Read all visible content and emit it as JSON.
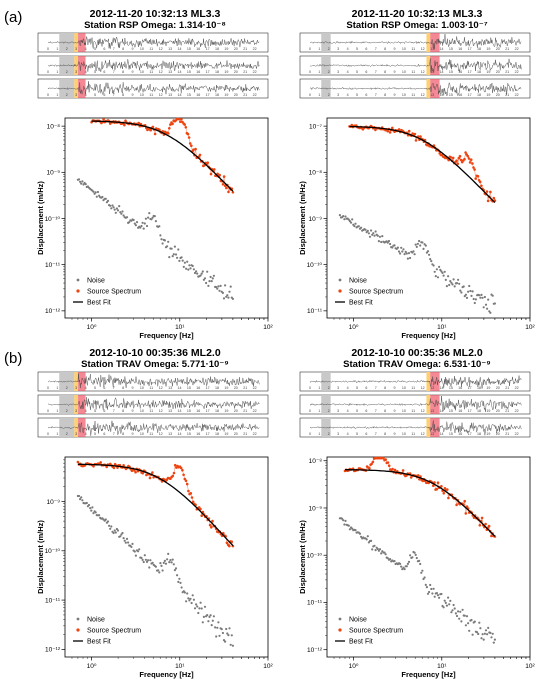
{
  "figure": {
    "panel_labels": [
      "(a)",
      "(b)"
    ]
  },
  "colors": {
    "noise": "#7a7a7a",
    "source": "#ee4411",
    "fit": "#000000",
    "noise_window": "#c8c8c8",
    "window_yellow": "#ffd070",
    "window_red": "#f06070",
    "trace": "#444444"
  },
  "legend_labels": {
    "noise": "Noise",
    "source": "Source Spectrum",
    "fit": "Best Fit"
  },
  "chart_data": [
    {
      "type": "scatter",
      "panel": "(a)",
      "title": "2012-11-20   10:32:13   ML3.3",
      "subtitle": "Station RSP     Omega: 1.314·10⁻⁸",
      "xlabel": "Frequency [Hz]",
      "ylabel": "Displacement (m/Hz)",
      "xscale": "log",
      "yscale": "log",
      "xlim": [
        0.5,
        100
      ],
      "ylim": [
        7e-13,
        1.5e-08
      ],
      "x_ticks": [
        1,
        10,
        100
      ],
      "x_tick_labels": [
        "10⁰",
        "10¹",
        "10²"
      ],
      "y_ticks": [
        1e-12,
        1e-11,
        1e-10,
        1e-09,
        1e-08
      ],
      "y_tick_labels": [
        "10⁻¹²",
        "10⁻¹¹",
        "10⁻¹⁰",
        "10⁻⁹",
        "10⁻⁸"
      ],
      "legend_position": "lower-left",
      "omega": 1.314e-08,
      "fc": 7,
      "f_max": 40,
      "noise": {
        "f_start": 0.7,
        "f_end": 40,
        "level_start": 7e-10,
        "level_end": 1.8e-12,
        "bump_f": 5,
        "bump_amp": 1.8
      },
      "source": {
        "f_start": 1.0,
        "f_end": 40,
        "bump_f": 10,
        "bump_amp": 2.5
      },
      "seismogram": {
        "tick_labels": [
          "0",
          "1",
          "2",
          "3",
          "4",
          "5",
          "6",
          "7",
          "8",
          "9",
          "10",
          "11",
          "12",
          "13",
          "14",
          "15",
          "16",
          "17",
          "18",
          "19",
          "20",
          "21",
          "22"
        ],
        "noise_window": [
          1.2,
          2.8
        ],
        "yellow_window": [
          2.8,
          3.2
        ],
        "red_window": [
          3.2,
          4.0
        ]
      }
    },
    {
      "type": "scatter",
      "panel": "(a)",
      "title": "2012-11-20   10:32:13   ML3.3",
      "subtitle": "Station RSP     Omega: 1.003·10⁻⁷",
      "xlabel": "Frequency [Hz]",
      "ylabel": "Displacement (m/Hz)",
      "xscale": "log",
      "yscale": "log",
      "xlim": [
        0.5,
        100
      ],
      "ylim": [
        7e-12,
        1.5e-07
      ],
      "x_ticks": [
        1,
        10,
        100
      ],
      "x_tick_labels": [
        "10⁰",
        "10¹",
        "10²"
      ],
      "y_ticks": [
        1e-11,
        1e-10,
        1e-09,
        1e-08,
        1e-07
      ],
      "y_tick_labels": [
        "10⁻¹¹",
        "10⁻¹⁰",
        "10⁻⁹",
        "10⁻⁸",
        "10⁻⁷"
      ],
      "legend_position": "lower-left",
      "omega": 1.003e-07,
      "fc": 6,
      "f_max": 40,
      "noise": {
        "f_start": 0.7,
        "f_end": 40,
        "level_start": 1.2e-09,
        "level_end": 1.2e-11,
        "bump_f": 6,
        "bump_amp": 2.0
      },
      "source": {
        "f_start": 0.9,
        "f_end": 40,
        "bump_f": 20,
        "bump_amp": 1.6
      },
      "seismogram": {
        "tick_labels": [
          "0",
          "1",
          "2",
          "3",
          "4",
          "5",
          "6",
          "7",
          "8",
          "9",
          "10",
          "11",
          "12",
          "13",
          "14",
          "15",
          "16",
          "17",
          "18",
          "19",
          "20",
          "21",
          "22"
        ],
        "noise_window": [
          1.2,
          2.2
        ],
        "yellow_window": [
          12.4,
          12.8
        ],
        "red_window": [
          12.8,
          13.8
        ]
      }
    },
    {
      "type": "scatter",
      "panel": "(b)",
      "title": "2012-10-10   00:35:36   ML2.0",
      "subtitle": "Station TRAV     Omega: 5.771·10⁻⁹",
      "xlabel": "Frequency [Hz]",
      "ylabel": "Displacement (m/Hz)",
      "xscale": "log",
      "yscale": "log",
      "xlim": [
        0.5,
        100
      ],
      "ylim": [
        7e-13,
        8e-09
      ],
      "x_ticks": [
        1,
        10,
        100
      ],
      "x_tick_labels": [
        "10⁰",
        "10¹",
        "10²"
      ],
      "y_ticks": [
        1e-12,
        1e-11,
        1e-10,
        1e-09
      ],
      "y_tick_labels": [
        "10⁻¹²",
        "10⁻¹¹",
        "10⁻¹⁰",
        "10⁻⁹"
      ],
      "legend_position": "lower-left",
      "omega": 5.771e-09,
      "fc": 6,
      "f_max": 40,
      "noise": {
        "f_start": 0.7,
        "f_end": 40,
        "level_start": 1.3e-09,
        "level_end": 1.5e-12,
        "bump_f": 8,
        "bump_amp": 1.8
      },
      "source": {
        "f_start": 0.7,
        "f_end": 40,
        "bump_f": 10,
        "bump_amp": 2.2
      },
      "seismogram": {
        "tick_labels": [
          "0",
          "1",
          "2",
          "3",
          "4",
          "5",
          "6",
          "7",
          "8",
          "9",
          "10",
          "11",
          "12",
          "13",
          "14",
          "15",
          "16",
          "17",
          "18",
          "19",
          "20",
          "21",
          "22"
        ],
        "noise_window": [
          1.2,
          2.8
        ],
        "yellow_window": [
          2.8,
          3.2
        ],
        "red_window": [
          3.2,
          4.0
        ]
      }
    },
    {
      "type": "scatter",
      "panel": "(b)",
      "title": "2012-10-10   00:35:36   ML2.0",
      "subtitle": "Station TRAV     Omega: 6.531·10⁻⁹",
      "xlabel": "Frequency [Hz]",
      "ylabel": "Displacement (m/Hz)",
      "xscale": "log",
      "yscale": "log",
      "xlim": [
        0.5,
        100
      ],
      "ylim": [
        7e-13,
        1.2e-08
      ],
      "x_ticks": [
        1,
        10,
        100
      ],
      "x_tick_labels": [
        "10⁰",
        "10¹",
        "10²"
      ],
      "y_ticks": [
        1e-12,
        1e-11,
        1e-10,
        1e-09,
        1e-08
      ],
      "y_tick_labels": [
        "10⁻¹²",
        "10⁻¹¹",
        "10⁻¹⁰",
        "10⁻⁹",
        "10⁻⁸"
      ],
      "legend_position": "lower-left",
      "omega": 6.531e-09,
      "fc": 8,
      "f_max": 40,
      "noise": {
        "f_start": 0.7,
        "f_end": 40,
        "level_start": 6e-10,
        "level_end": 1.5e-12,
        "bump_f": 5,
        "bump_amp": 2.2
      },
      "source": {
        "f_start": 0.8,
        "f_end": 40,
        "bump_f": 2,
        "bump_amp": 1.2
      },
      "seismogram": {
        "tick_labels": [
          "0",
          "1",
          "2",
          "3",
          "4",
          "5",
          "6",
          "7",
          "8",
          "9",
          "10",
          "11",
          "12",
          "13",
          "14",
          "15",
          "16",
          "17",
          "18",
          "19",
          "20",
          "21",
          "22"
        ],
        "noise_window": [
          1.2,
          2.2
        ],
        "yellow_window": [
          12.4,
          12.8
        ],
        "red_window": [
          12.8,
          13.8
        ]
      }
    }
  ]
}
